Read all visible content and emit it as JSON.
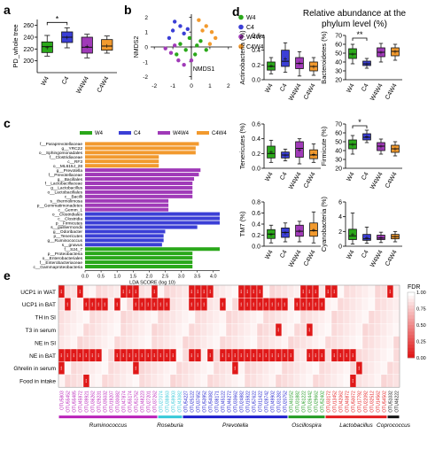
{
  "panel_labels": {
    "a": "a",
    "b": "b",
    "c": "c",
    "d": "d",
    "e": "e"
  },
  "colors": {
    "W4": "#2aa81a",
    "C4": "#3b3fd6",
    "W4W4": "#a03ab8",
    "C4W4": "#f29a2e",
    "red": "#e31a1c",
    "green": "#1f9a1f",
    "blue": "#1a1acc",
    "magenta": "#b81fb8",
    "cyan": "#33c8d8"
  },
  "chart_data": [
    {
      "id": "a",
      "type": "box",
      "ylabel": "PD_whole tree",
      "ylim": [
        180,
        270
      ],
      "yticks": [
        200,
        220,
        240,
        260
      ],
      "categories": [
        "W4",
        "C4",
        "W4W4",
        "C4W4"
      ],
      "boxes": [
        {
          "name": "W4",
          "min": 208,
          "q1": 214,
          "median": 224,
          "q3": 232,
          "max": 243,
          "mean": 223
        },
        {
          "name": "C4",
          "min": 222,
          "q1": 231,
          "median": 240,
          "q3": 249,
          "max": 256,
          "mean": 240
        },
        {
          "name": "W4W4",
          "min": 205,
          "q1": 213,
          "median": 223,
          "q3": 240,
          "max": 245,
          "mean": 225
        },
        {
          "name": "C4W4",
          "min": 213,
          "q1": 218,
          "median": 225,
          "q3": 236,
          "max": 242,
          "mean": 226
        }
      ],
      "significance": [
        {
          "from": "W4",
          "to": "C4",
          "label": "*"
        }
      ]
    },
    {
      "id": "b",
      "type": "scatter",
      "xlabel": "NMDS1",
      "ylabel": "NMDS2",
      "xlim": [
        -2.2,
        2.2
      ],
      "ylim": [
        -2.2,
        2.2
      ],
      "xticks": [
        -2,
        -1,
        0,
        1,
        2
      ],
      "yticks": [
        -2,
        -1,
        0,
        1,
        2
      ],
      "legend": [
        "W4",
        "C4",
        "W4W4",
        "C4W4"
      ],
      "legend_position": "right",
      "series": [
        {
          "name": "W4",
          "points": [
            [
              -0.6,
              0.2
            ],
            [
              -0.3,
              -0.2
            ],
            [
              0.2,
              -0.5
            ],
            [
              0.5,
              0.4
            ],
            [
              0.8,
              -0.2
            ],
            [
              -0.1,
              0.6
            ],
            [
              0.3,
              0.1
            ],
            [
              -0.8,
              -0.5
            ]
          ]
        },
        {
          "name": "C4",
          "points": [
            [
              -1.0,
              1.1
            ],
            [
              -0.6,
              1.4
            ],
            [
              -1.2,
              0.6
            ],
            [
              -0.4,
              0.9
            ],
            [
              -0.9,
              1.7
            ],
            [
              -0.2,
              1.2
            ]
          ]
        },
        {
          "name": "W4W4",
          "points": [
            [
              -0.7,
              -0.9
            ],
            [
              -1.1,
              -0.4
            ],
            [
              -0.4,
              -1.2
            ],
            [
              -1.4,
              -0.1
            ],
            [
              0.0,
              -0.9
            ],
            [
              -0.9,
              0.1
            ]
          ]
        },
        {
          "name": "C4W4",
          "points": [
            [
              0.8,
              1.4
            ],
            [
              1.1,
              1.0
            ],
            [
              0.4,
              1.8
            ],
            [
              1.3,
              0.6
            ],
            [
              0.6,
              1.1
            ],
            [
              1.0,
              0.2
            ]
          ]
        }
      ]
    },
    {
      "id": "c",
      "type": "bar",
      "orientation": "horizontal",
      "xlabel": "LDA SCORE (log 10)",
      "xlim": [
        0,
        4.2
      ],
      "xticks": [
        "0.0",
        "0.5",
        "1.0",
        "1.5",
        "2.0",
        "2.5",
        "3.0",
        "3.5",
        "4.0"
      ],
      "legend": [
        "W4",
        "C4",
        "W4W4",
        "C4W4"
      ],
      "legend_position": "top",
      "categories": [
        "f__Paraprevotellaceae",
        "g__YRC22",
        "o__Sphingomonadales",
        "f__Clostridiaceae",
        "c__RF3",
        "o__ML615J_28",
        "g__Prevotella",
        "f__Prevotellaceae",
        "g__Bacillales",
        "f__Lactobacillaceae",
        "g__Lactobacillus",
        "o__Lactobacillales",
        "c__Bacilli",
        "s__thermolimosa",
        "p__Gemmatimonadetes",
        "c__Gemm_1",
        "o__Clostridiales",
        "c__Clostridia",
        "p__Firmicutes",
        "s__guilliermondii",
        "g__Odoribacter",
        "p__Tenericutes",
        "g__Ruminococcus",
        "s__gnavus",
        "f__S24_7",
        "p__Proteobacteria",
        "o__Enterobacteriales",
        "f__Enterobacteriaceae",
        "c__Gammaproteobacteria"
      ],
      "values": [
        3.55,
        3.45,
        3.45,
        2.3,
        2.3,
        2.3,
        3.6,
        3.55,
        3.4,
        3.35,
        3.35,
        3.35,
        3.35,
        2.6,
        2.6,
        2.6,
        4.2,
        4.2,
        4.2,
        3.5,
        2.5,
        2.45,
        2.45,
        2.4,
        4.2,
        3.35,
        3.35,
        3.35,
        3.35
      ],
      "groups": [
        "C4W4",
        "C4W4",
        "C4W4",
        "C4W4",
        "C4W4",
        "C4W4",
        "W4W4",
        "W4W4",
        "W4W4",
        "W4W4",
        "W4W4",
        "W4W4",
        "W4W4",
        "W4W4",
        "W4W4",
        "W4W4",
        "C4",
        "C4",
        "C4",
        "C4",
        "C4",
        "C4",
        "C4",
        "C4",
        "W4",
        "W4",
        "W4",
        "W4",
        "W4"
      ]
    },
    {
      "id": "d",
      "type": "box",
      "title": "Relative abundance at the phylum level (%)",
      "categories": [
        "W4",
        "C4",
        "W4W4",
        "C4W4"
      ],
      "subplots": [
        {
          "ylabel": "Actinobacteria (%)",
          "ylim": [
            0,
            0.6
          ],
          "yticks": [
            "0.0",
            "0.2",
            "0.4",
            "0.6"
          ],
          "boxes": [
            {
              "min": 0.08,
              "q1": 0.13,
              "median": 0.18,
              "q3": 0.24,
              "max": 0.3,
              "mean": 0.19
            },
            {
              "min": 0.1,
              "q1": 0.18,
              "median": 0.25,
              "q3": 0.4,
              "max": 0.5,
              "mean": 0.29
            },
            {
              "min": 0.05,
              "q1": 0.15,
              "median": 0.22,
              "q3": 0.3,
              "max": 0.38,
              "mean": 0.23
            },
            {
              "min": 0.06,
              "q1": 0.12,
              "median": 0.18,
              "q3": 0.24,
              "max": 0.3,
              "mean": 0.18
            }
          ],
          "significance": []
        },
        {
          "ylabel": "Bacteroidetes (%)",
          "ylim": [
            20,
            70
          ],
          "yticks": [
            "20",
            "30",
            "40",
            "50",
            "60",
            "70"
          ],
          "boxes": [
            {
              "min": 38,
              "q1": 44,
              "median": 49,
              "q3": 55,
              "max": 60,
              "mean": 49
            },
            {
              "min": 33,
              "q1": 36,
              "median": 38,
              "q3": 41,
              "max": 44,
              "mean": 38
            },
            {
              "min": 40,
              "q1": 46,
              "median": 51,
              "q3": 56,
              "max": 61,
              "mean": 51
            },
            {
              "min": 42,
              "q1": 47,
              "median": 52,
              "q3": 56,
              "max": 60,
              "mean": 52
            }
          ],
          "significance": [
            {
              "from": "W4",
              "to": "C4",
              "label": "**"
            }
          ]
        },
        {
          "ylabel": "Tenericutes (%)",
          "ylim": [
            0,
            0.6
          ],
          "yticks": [
            "0.0",
            "0.2",
            "0.4",
            "0.6"
          ],
          "boxes": [
            {
              "min": 0.08,
              "q1": 0.14,
              "median": 0.2,
              "q3": 0.3,
              "max": 0.38,
              "mean": 0.22
            },
            {
              "min": 0.1,
              "q1": 0.14,
              "median": 0.18,
              "q3": 0.22,
              "max": 0.26,
              "mean": 0.18
            },
            {
              "min": 0.06,
              "q1": 0.15,
              "median": 0.27,
              "q3": 0.36,
              "max": 0.4,
              "mean": 0.25
            },
            {
              "min": 0.08,
              "q1": 0.13,
              "median": 0.18,
              "q3": 0.25,
              "max": 0.33,
              "mean": 0.19
            }
          ],
          "significance": []
        },
        {
          "ylabel": "Firmicute (%)",
          "ylim": [
            20,
            70
          ],
          "yticks": [
            "20",
            "30",
            "40",
            "50",
            "60",
            "70"
          ],
          "boxes": [
            {
              "min": 36,
              "q1": 42,
              "median": 47,
              "q3": 52,
              "max": 57,
              "mean": 47
            },
            {
              "min": 49,
              "q1": 52,
              "median": 55,
              "q3": 59,
              "max": 63,
              "mean": 56
            },
            {
              "min": 36,
              "q1": 40,
              "median": 45,
              "q3": 49,
              "max": 53,
              "mean": 45
            },
            {
              "min": 34,
              "q1": 38,
              "median": 42,
              "q3": 46,
              "max": 50,
              "mean": 42
            }
          ],
          "significance": [
            {
              "from": "W4",
              "to": "C4",
              "label": "*"
            }
          ]
        },
        {
          "ylabel": "TM7 (%)",
          "ylim": [
            0,
            0.8
          ],
          "yticks": [
            "0.0",
            "0.2",
            "0.4",
            "0.6",
            "0.8"
          ],
          "boxes": [
            {
              "min": 0.06,
              "q1": 0.14,
              "median": 0.22,
              "q3": 0.3,
              "max": 0.38,
              "mean": 0.22
            },
            {
              "min": 0.08,
              "q1": 0.16,
              "median": 0.25,
              "q3": 0.33,
              "max": 0.42,
              "mean": 0.25
            },
            {
              "min": 0.08,
              "q1": 0.18,
              "median": 0.27,
              "q3": 0.38,
              "max": 0.45,
              "mean": 0.28
            },
            {
              "min": 0.06,
              "q1": 0.18,
              "median": 0.28,
              "q3": 0.42,
              "max": 0.62,
              "mean": 0.3
            }
          ],
          "significance": []
        },
        {
          "ylabel": "Cyanobacteria (%)",
          "ylim": [
            0,
            6
          ],
          "yticks": [
            "0",
            "2",
            "4",
            "6"
          ],
          "boxes": [
            {
              "min": 0.3,
              "q1": 0.9,
              "median": 1.4,
              "q3": 2.3,
              "max": 4.5,
              "mean": 1.6
            },
            {
              "min": 0.4,
              "q1": 0.8,
              "median": 1.0,
              "q3": 1.6,
              "max": 2.6,
              "mean": 1.2
            },
            {
              "min": 0.5,
              "q1": 0.9,
              "median": 1.1,
              "q3": 1.5,
              "max": 1.9,
              "mean": 1.2
            },
            {
              "min": 0.6,
              "q1": 1.0,
              "median": 1.3,
              "q3": 1.6,
              "max": 2.0,
              "mean": 1.3
            }
          ],
          "significance": []
        }
      ]
    },
    {
      "id": "e",
      "type": "heatmap",
      "legend_title": "FDR",
      "colorbar_ticks": [
        "1.00",
        "0.75",
        "0.50",
        "0.25",
        "0.00"
      ],
      "rows": [
        "UCP1 in WAT",
        "UCP1 in BAT",
        "TH in SI",
        "T3 in serum",
        "NE in SI",
        "NE in BAT",
        "Ghrelin in serum",
        "Food in intake"
      ],
      "columns": [
        "OTU5803",
        "OTU55452",
        "OTU55485",
        "OTU45972",
        "OTU39921",
        "OTU36262",
        "OTU29231",
        "OTU35032",
        "OTU19207",
        "OTU30082",
        "OTU47874",
        "OTU55174",
        "OTU51752",
        "OTU48223",
        "OTU27201",
        "OTU37262",
        "OTU27074",
        "OTU38863",
        "OTU59903",
        "OTU43082",
        "OTU54227",
        "OTU25122",
        "OTU37652",
        "OTU53952",
        "OTU54082",
        "OTU38171",
        "OTU45122",
        "OTU46272",
        "OTU33662",
        "OTU24882",
        "OTU15922",
        "OTU57622",
        "OTU11422",
        "OTU28742",
        "OTU49902",
        "OTU31282",
        "OTU20752",
        "OTU40152",
        "OTU31882",
        "OTU61222",
        "OTU26442",
        "OTU29662",
        "OTU52402",
        "OTU33172",
        "OTU13452",
        "OTU42062",
        "OTU40872",
        "OTU50072",
        "OTU17792",
        "OTU22092",
        "OTU32512",
        "OTU14562",
        "OTU54502",
        "OTU51032",
        "OTU46222"
      ],
      "groups": [
        {
          "label": "Ruminococcus",
          "span": 16,
          "color": "magenta"
        },
        {
          "label": "Roseburia",
          "span": 4,
          "color": "cyan"
        },
        {
          "label": "Prevotella",
          "span": 17,
          "color": "blue"
        },
        {
          "label": "Oscillospira",
          "span": 6,
          "color": "green"
        },
        {
          "label": "Lactobacillus",
          "span": 10,
          "color": "red"
        },
        {
          "label": "Coprococcus",
          "span": 2,
          "color": "black"
        }
      ],
      "significant_marker": "***",
      "significant_cells": {
        "0": [
          0,
          3,
          10,
          11,
          12,
          15,
          21,
          22,
          23,
          24,
          29,
          30,
          31,
          32,
          39,
          40,
          41,
          43,
          44,
          53
        ],
        "1": [
          1,
          4,
          5,
          6,
          7,
          9,
          12,
          13,
          14,
          15,
          16,
          17,
          21,
          22,
          23,
          26,
          29,
          30,
          31,
          32,
          33,
          34,
          35,
          36,
          38,
          39,
          40,
          41,
          42
        ],
        "3": [
          35,
          40
        ],
        "5": [
          0,
          1,
          2,
          3,
          4,
          5,
          6,
          9,
          10,
          11,
          12,
          13,
          14,
          15,
          16,
          17,
          18,
          21,
          22,
          24,
          26,
          27,
          28,
          29,
          30,
          31,
          32,
          33,
          34,
          35,
          36,
          37,
          40,
          41,
          42,
          44,
          45,
          46,
          47
        ],
        "6": [
          0,
          12,
          28,
          48
        ],
        "7": [
          4,
          47
        ]
      }
    }
  ]
}
